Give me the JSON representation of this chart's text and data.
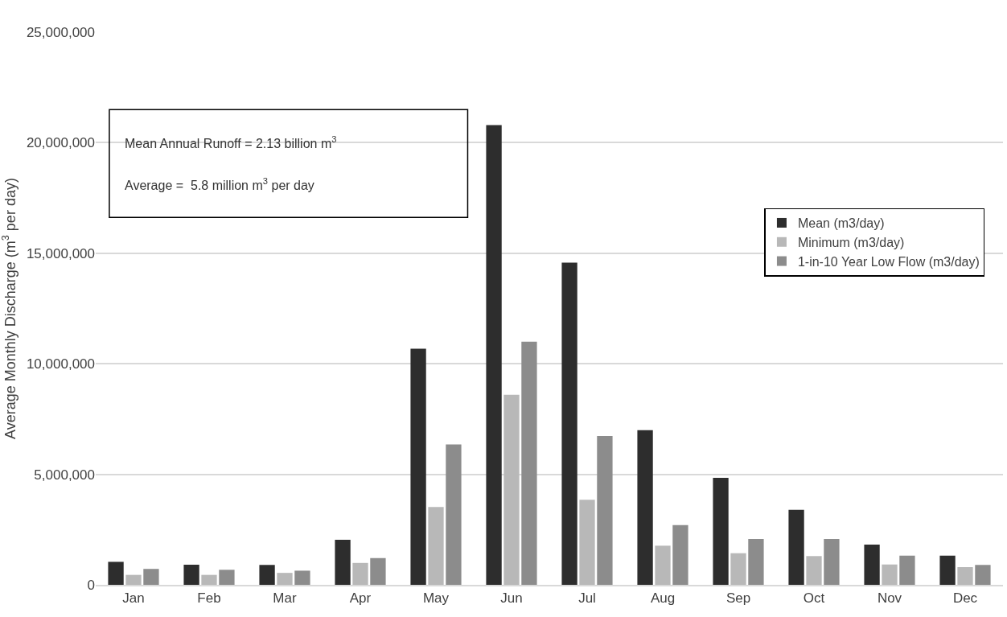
{
  "chart_data": {
    "type": "bar",
    "ylabel": "Average Monthly Discharge (m$^{3}$ per day)",
    "categories": [
      "Jan",
      "Feb",
      "Mar",
      "Apr",
      "May",
      "Jun",
      "Jul",
      "Aug",
      "Sep",
      "Oct",
      "Nov",
      "Dec"
    ],
    "series": [
      {
        "name": "Mean (m3/day)",
        "color": "#2d2d2d",
        "values": [
          1040000,
          910000,
          900000,
          2040000,
          10680000,
          20800000,
          14570000,
          7000000,
          4840000,
          3390000,
          1820000,
          1320000
        ]
      },
      {
        "name": "Minimum (m3/day)",
        "color": "#b8b8b8",
        "values": [
          450000,
          450000,
          540000,
          990000,
          3520000,
          8600000,
          3850000,
          1770000,
          1430000,
          1300000,
          920000,
          800000
        ]
      },
      {
        "name": "1-in-10 Year Low Flow (m3/day)",
        "color": "#8c8c8c",
        "values": [
          720000,
          680000,
          640000,
          1210000,
          6350000,
          11000000,
          6730000,
          2700000,
          2070000,
          2070000,
          1320000,
          900000
        ]
      }
    ],
    "ylim": [
      0,
      25000000
    ],
    "yticks": [
      {
        "value": 0,
        "label": "0"
      },
      {
        "value": 5000000,
        "label": "5,000,000"
      },
      {
        "value": 10000000,
        "label": "10,000,000"
      },
      {
        "value": 15000000,
        "label": "15,000,000"
      },
      {
        "value": 20000000,
        "label": "20,000,000"
      },
      {
        "value": 25000000,
        "label": "25,000,000"
      }
    ],
    "annotations": [
      "Mean Annual Runoff = 2.13 billion m$^{3}$",
      "Average =  5.8 million m$^{3}$ per day"
    ],
    "grid": "y",
    "legend": "right"
  }
}
